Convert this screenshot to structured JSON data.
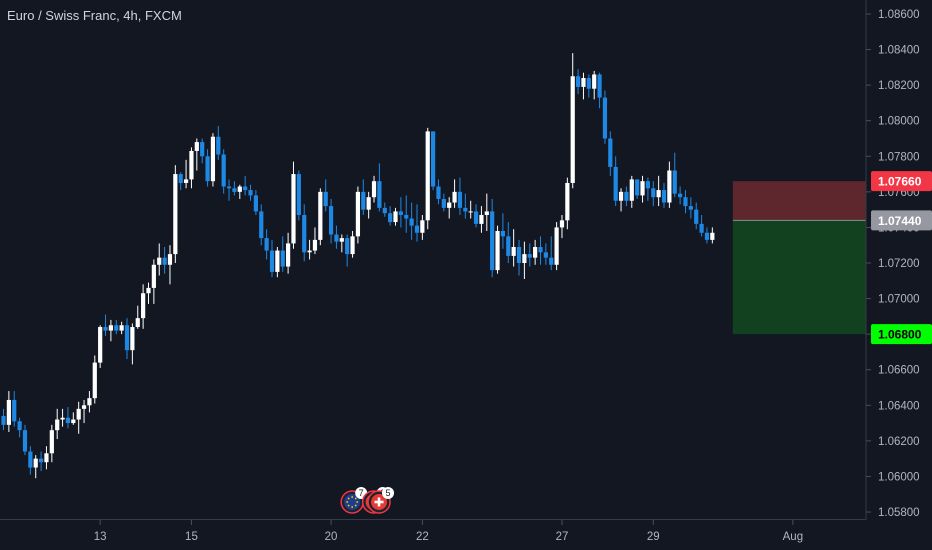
{
  "header": {
    "title": "Euro / Swiss Franc, 4h, FXCM"
  },
  "colors": {
    "background": "#131722",
    "up": "#ffffff",
    "down": "#1e88e5",
    "axis_text": "#b2b5be",
    "stop_zone": "#6b2a2f",
    "target_zone": "#13461f",
    "stop_tag": "#f23645",
    "entry_tag": "#9598a1",
    "target_tag": "#00ff00"
  },
  "markers": [
    {
      "icon": "eu-flag-icon",
      "count": "7",
      "date_index": 64
    },
    {
      "icon": "swiss-flag-icon",
      "count": "2",
      "date_index": 68
    },
    {
      "icon": "swiss-flag-icon",
      "count": "5",
      "date_index": 69
    }
  ],
  "chart_data": {
    "type": "candlestick",
    "title": "Euro / Swiss Franc, 4h, FXCM",
    "ylim": [
      1.0578,
      1.0868
    ],
    "y_ticks": [
      "1.08600",
      "1.08400",
      "1.08200",
      "1.08000",
      "1.07800",
      "1.07600",
      "1.07400",
      "1.07200",
      "1.07000",
      "1.06800",
      "1.06600",
      "1.06400",
      "1.06200",
      "1.06000",
      "1.05800"
    ],
    "x_ticks": [
      {
        "label": "13",
        "index": 18
      },
      {
        "label": "15",
        "index": 35
      },
      {
        "label": "20",
        "index": 61
      },
      {
        "label": "22",
        "index": 78
      },
      {
        "label": "27",
        "index": 104
      },
      {
        "label": "29",
        "index": 121
      },
      {
        "label": "Aug",
        "index": 147
      }
    ],
    "candles": [
      [
        1.0634,
        1.0638,
        1.0626,
        1.0629
      ],
      [
        1.0629,
        1.0648,
        1.0625,
        1.0643
      ],
      [
        1.0643,
        1.0648,
        1.0628,
        1.0631
      ],
      [
        1.0631,
        1.0633,
        1.0622,
        1.0626
      ],
      [
        1.0626,
        1.0629,
        1.0612,
        1.0614
      ],
      [
        1.0614,
        1.0617,
        1.0601,
        1.0605
      ],
      [
        1.0605,
        1.0612,
        1.0599,
        1.061
      ],
      [
        1.061,
        1.0614,
        1.0603,
        1.0608
      ],
      [
        1.0608,
        1.0617,
        1.0604,
        1.0613
      ],
      [
        1.0613,
        1.0629,
        1.0608,
        1.0626
      ],
      [
        1.0626,
        1.0638,
        1.0621,
        1.0632
      ],
      [
        1.0632,
        1.0638,
        1.0628,
        1.0633
      ],
      [
        1.0633,
        1.0639,
        1.0627,
        1.063
      ],
      [
        1.063,
        1.0636,
        1.0629,
        1.0632
      ],
      [
        1.0632,
        1.0642,
        1.0624,
        1.0638
      ],
      [
        1.0638,
        1.0643,
        1.063,
        1.064
      ],
      [
        1.064,
        1.0648,
        1.0636,
        1.0644
      ],
      [
        1.0644,
        1.0668,
        1.0641,
        1.0664
      ],
      [
        1.0664,
        1.0685,
        1.0661,
        1.0684
      ],
      [
        1.0684,
        1.0691,
        1.0679,
        1.0682
      ],
      [
        1.0682,
        1.0688,
        1.0676,
        1.0685
      ],
      [
        1.0685,
        1.0688,
        1.068,
        1.0682
      ],
      [
        1.0682,
        1.0687,
        1.068,
        1.0685
      ],
      [
        1.0685,
        1.0689,
        1.0666,
        1.0671
      ],
      [
        1.0671,
        1.0686,
        1.0663,
        1.0684
      ],
      [
        1.0684,
        1.0696,
        1.0683,
        1.0689
      ],
      [
        1.0689,
        1.0708,
        1.0683,
        1.0703
      ],
      [
        1.0703,
        1.0709,
        1.0697,
        1.0706
      ],
      [
        1.0706,
        1.0722,
        1.0697,
        1.0719
      ],
      [
        1.0719,
        1.0731,
        1.0713,
        1.0723
      ],
      [
        1.0723,
        1.0729,
        1.0714,
        1.0719
      ],
      [
        1.0719,
        1.073,
        1.0708,
        1.0725
      ],
      [
        1.0725,
        1.0775,
        1.072,
        1.077
      ],
      [
        1.077,
        1.0771,
        1.0761,
        1.0765
      ],
      [
        1.0765,
        1.0778,
        1.0762,
        1.0767
      ],
      [
        1.0767,
        1.0785,
        1.0762,
        1.0783
      ],
      [
        1.0783,
        1.079,
        1.0772,
        1.0788
      ],
      [
        1.0788,
        1.079,
        1.0776,
        1.078
      ],
      [
        1.078,
        1.0784,
        1.0763,
        1.0766
      ],
      [
        1.0766,
        1.0793,
        1.0763,
        1.0791
      ],
      [
        1.0791,
        1.0797,
        1.0778,
        1.0781
      ],
      [
        1.0781,
        1.0784,
        1.0759,
        1.0763
      ],
      [
        1.0763,
        1.0767,
        1.0755,
        1.0762
      ],
      [
        1.0762,
        1.0766,
        1.0758,
        1.076
      ],
      [
        1.076,
        1.0764,
        1.0756,
        1.0763
      ],
      [
        1.0763,
        1.0769,
        1.0758,
        1.0761
      ],
      [
        1.0761,
        1.0764,
        1.0755,
        1.0758
      ],
      [
        1.0758,
        1.0761,
        1.0747,
        1.0749
      ],
      [
        1.0749,
        1.0753,
        1.073,
        1.0734
      ],
      [
        1.0734,
        1.0739,
        1.0722,
        1.0727
      ],
      [
        1.0727,
        1.0733,
        1.0712,
        1.0715
      ],
      [
        1.0715,
        1.0729,
        1.0712,
        1.0727
      ],
      [
        1.0727,
        1.0735,
        1.0715,
        1.0718
      ],
      [
        1.0718,
        1.0737,
        1.0714,
        1.0731
      ],
      [
        1.0731,
        1.0777,
        1.0728,
        1.077
      ],
      [
        1.077,
        1.0772,
        1.0744,
        1.0747
      ],
      [
        1.0747,
        1.0753,
        1.0721,
        1.0726
      ],
      [
        1.0726,
        1.0733,
        1.0722,
        1.0727
      ],
      [
        1.0727,
        1.074,
        1.0725,
        1.0733
      ],
      [
        1.0733,
        1.0762,
        1.073,
        1.076
      ],
      [
        1.076,
        1.0767,
        1.0749,
        1.0752
      ],
      [
        1.0752,
        1.0756,
        1.0731,
        1.0736
      ],
      [
        1.0736,
        1.0741,
        1.0728,
        1.0732
      ],
      [
        1.0732,
        1.0736,
        1.0726,
        1.0734
      ],
      [
        1.0734,
        1.0736,
        1.0718,
        1.0725
      ],
      [
        1.0725,
        1.0738,
        1.0723,
        1.0735
      ],
      [
        1.0735,
        1.0763,
        1.0731,
        1.076
      ],
      [
        1.076,
        1.0767,
        1.0747,
        1.075
      ],
      [
        1.075,
        1.076,
        1.0745,
        1.0757
      ],
      [
        1.0757,
        1.0769,
        1.0754,
        1.0766
      ],
      [
        1.0766,
        1.0776,
        1.0749,
        1.0751
      ],
      [
        1.0751,
        1.0754,
        1.0746,
        1.0748
      ],
      [
        1.0748,
        1.0752,
        1.0741,
        1.0743
      ],
      [
        1.0743,
        1.0751,
        1.0741,
        1.0749
      ],
      [
        1.0749,
        1.0757,
        1.074,
        1.0747
      ],
      [
        1.0747,
        1.0758,
        1.0737,
        1.0745
      ],
      [
        1.0745,
        1.0754,
        1.0733,
        1.0741
      ],
      [
        1.0741,
        1.0753,
        1.0732,
        1.0737
      ],
      [
        1.0737,
        1.0747,
        1.0733,
        1.0744
      ],
      [
        1.0744,
        1.0796,
        1.0739,
        1.0794
      ],
      [
        1.0794,
        1.0794,
        1.0761,
        1.0763
      ],
      [
        1.0763,
        1.0767,
        1.0753,
        1.0756
      ],
      [
        1.0756,
        1.0759,
        1.0749,
        1.0751
      ],
      [
        1.0751,
        1.0757,
        1.0745,
        1.0754
      ],
      [
        1.0754,
        1.0767,
        1.0751,
        1.076
      ],
      [
        1.076,
        1.0768,
        1.0747,
        1.0751
      ],
      [
        1.0751,
        1.0759,
        1.0745,
        1.0749
      ],
      [
        1.0749,
        1.0755,
        1.0745,
        1.0749
      ],
      [
        1.0749,
        1.0753,
        1.074,
        1.0742
      ],
      [
        1.0742,
        1.0752,
        1.0737,
        1.0747
      ],
      [
        1.0747,
        1.0759,
        1.0738,
        1.0749
      ],
      [
        1.0749,
        1.0756,
        1.0712,
        1.0716
      ],
      [
        1.0716,
        1.0741,
        1.0714,
        1.0738
      ],
      [
        1.0738,
        1.0748,
        1.0728,
        1.0735
      ],
      [
        1.0735,
        1.0743,
        1.072,
        1.0724
      ],
      [
        1.0724,
        1.0739,
        1.0718,
        1.0729
      ],
      [
        1.0729,
        1.0733,
        1.0713,
        1.072
      ],
      [
        1.072,
        1.0732,
        1.0711,
        1.0725
      ],
      [
        1.0725,
        1.0731,
        1.0718,
        1.0723
      ],
      [
        1.0723,
        1.0733,
        1.0719,
        1.0729
      ],
      [
        1.0729,
        1.0735,
        1.0719,
        1.0726
      ],
      [
        1.0726,
        1.0731,
        1.0719,
        1.0723
      ],
      [
        1.0723,
        1.0735,
        1.0716,
        1.0719
      ],
      [
        1.0719,
        1.0743,
        1.0716,
        1.074
      ],
      [
        1.074,
        1.0747,
        1.0734,
        1.0744
      ],
      [
        1.0744,
        1.0768,
        1.0739,
        1.0765
      ],
      [
        1.0765,
        1.0838,
        1.0762,
        1.0825
      ],
      [
        1.0825,
        1.0829,
        1.0815,
        1.0819
      ],
      [
        1.0819,
        1.0827,
        1.0812,
        1.0824
      ],
      [
        1.0824,
        1.0826,
        1.0813,
        1.0818
      ],
      [
        1.0818,
        1.0828,
        1.0812,
        1.0826
      ],
      [
        1.0826,
        1.0827,
        1.0807,
        1.0813
      ],
      [
        1.0813,
        1.0817,
        1.0787,
        1.079
      ],
      [
        1.079,
        1.0794,
        1.0769,
        1.0774
      ],
      [
        1.0774,
        1.078,
        1.0752,
        1.0755
      ],
      [
        1.0755,
        1.0762,
        1.0749,
        1.076
      ],
      [
        1.076,
        1.0763,
        1.0752,
        1.0755
      ],
      [
        1.0755,
        1.0769,
        1.0751,
        1.0767
      ],
      [
        1.0767,
        1.0767,
        1.0756,
        1.0758
      ],
      [
        1.0758,
        1.0769,
        1.0754,
        1.0766
      ],
      [
        1.0766,
        1.0768,
        1.0755,
        1.0762
      ],
      [
        1.0762,
        1.0766,
        1.0752,
        1.0757
      ],
      [
        1.0757,
        1.0769,
        1.0752,
        1.0761
      ],
      [
        1.0761,
        1.0765,
        1.0751,
        1.0754
      ],
      [
        1.0754,
        1.0777,
        1.0751,
        1.0772
      ],
      [
        1.0772,
        1.0782,
        1.0757,
        1.0759
      ],
      [
        1.0759,
        1.0763,
        1.0753,
        1.0757
      ],
      [
        1.0757,
        1.0761,
        1.0748,
        1.0752
      ],
      [
        1.0752,
        1.0757,
        1.0745,
        1.075
      ],
      [
        1.075,
        1.0754,
        1.0739,
        1.0742
      ],
      [
        1.0742,
        1.0747,
        1.0735,
        1.0737
      ],
      [
        1.0737,
        1.074,
        1.0731,
        1.0733
      ],
      [
        1.0733,
        1.074,
        1.0731,
        1.0737
      ]
    ],
    "position": {
      "type": "short",
      "entry": 1.0744,
      "stop": 1.0766,
      "target": 1.068,
      "start_index": 136,
      "end_index": 150,
      "labels": {
        "stop": "1.07660",
        "entry": "1.07440",
        "target": "1.06800"
      }
    }
  }
}
